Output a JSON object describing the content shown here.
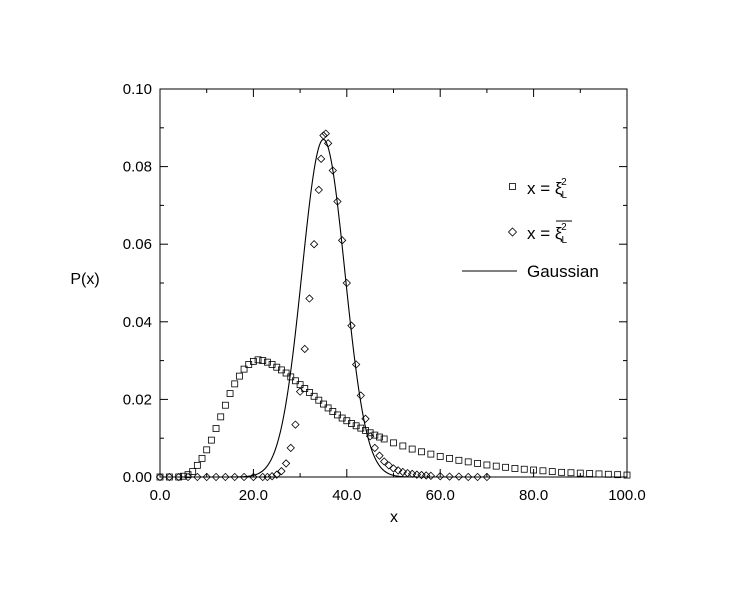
{
  "chart_data": {
    "type": "scatter",
    "title": "",
    "xlabel": "x",
    "ylabel": "P(x)",
    "xlim": [
      0,
      100
    ],
    "ylim": [
      0,
      0.1
    ],
    "x_ticks": [
      "0.0",
      "20.0",
      "40.0",
      "60.0",
      "80.0",
      "100.0"
    ],
    "y_ticks": [
      "0.00",
      "0.02",
      "0.04",
      "0.06",
      "0.08",
      "0.10"
    ],
    "grid": false,
    "legend_position": "top-right",
    "legend": {
      "square": {
        "prefix": "x = ",
        "symbol": "ξ",
        "sub": "L",
        "sup": "2"
      },
      "diamond": {
        "prefix": "x = ",
        "symbol": "ξ",
        "sub": "L",
        "sup": "2",
        "overline": true
      },
      "line": "Gaussian"
    },
    "series": [
      {
        "marker": "square",
        "x": [
          0,
          2,
          4,
          5,
          6,
          7,
          8,
          9,
          10,
          11,
          12,
          13,
          14,
          15,
          16,
          17,
          18,
          19,
          20,
          21,
          22,
          23,
          24,
          25,
          26,
          27,
          28,
          29,
          30,
          31,
          32,
          33,
          34,
          35,
          36,
          37,
          38,
          39,
          40,
          41,
          42,
          43,
          44,
          45,
          46,
          47,
          48,
          50,
          52,
          54,
          56,
          58,
          60,
          62,
          64,
          66,
          68,
          70,
          72,
          74,
          76,
          78,
          80,
          82,
          84,
          86,
          88,
          90,
          92,
          94,
          96,
          98,
          100
        ],
        "y": [
          0.0,
          0.0,
          0.0,
          0.0002,
          0.0006,
          0.0014,
          0.003,
          0.0048,
          0.007,
          0.0095,
          0.0125,
          0.0155,
          0.0185,
          0.0215,
          0.024,
          0.026,
          0.0278,
          0.029,
          0.0298,
          0.0302,
          0.03,
          0.0296,
          0.029,
          0.0283,
          0.0276,
          0.0268,
          0.0258,
          0.0248,
          0.0238,
          0.0228,
          0.0218,
          0.0208,
          0.0198,
          0.0188,
          0.0178,
          0.0169,
          0.016,
          0.0152,
          0.0145,
          0.0138,
          0.0132,
          0.0126,
          0.012,
          0.0114,
          0.0108,
          0.0103,
          0.0098,
          0.0088,
          0.008,
          0.0072,
          0.0065,
          0.0059,
          0.0053,
          0.0048,
          0.0043,
          0.0039,
          0.0035,
          0.0031,
          0.0028,
          0.0025,
          0.0022,
          0.002,
          0.0018,
          0.0016,
          0.0014,
          0.0012,
          0.0011,
          0.001,
          0.0009,
          0.0008,
          0.0007,
          0.0006,
          0.0005
        ]
      },
      {
        "marker": "diamond",
        "x": [
          0,
          2,
          4,
          6,
          8,
          10,
          12,
          14,
          16,
          18,
          20,
          22,
          23,
          24,
          25,
          26,
          27,
          28,
          29,
          30,
          31,
          32,
          33,
          34,
          34.5,
          35,
          35.5,
          36,
          37,
          38,
          39,
          40,
          41,
          42,
          43,
          44,
          45,
          46,
          47,
          48,
          49,
          50,
          51,
          52,
          53,
          54,
          55,
          56,
          57,
          58,
          60,
          62,
          64,
          66,
          68,
          70
        ],
        "y": [
          0.0,
          0.0,
          0.0,
          0.0,
          0.0,
          0.0,
          0.0,
          0.0,
          0.0,
          0.0,
          0.0,
          0.0,
          0.0,
          0.0002,
          0.0006,
          0.0015,
          0.0035,
          0.0075,
          0.0135,
          0.022,
          0.033,
          0.046,
          0.06,
          0.074,
          0.082,
          0.088,
          0.0885,
          0.086,
          0.079,
          0.071,
          0.061,
          0.05,
          0.039,
          0.029,
          0.021,
          0.015,
          0.0105,
          0.0075,
          0.0055,
          0.004,
          0.003,
          0.0022,
          0.0017,
          0.0013,
          0.001,
          0.0008,
          0.0006,
          0.0005,
          0.0004,
          0.0003,
          0.0002,
          0.0001,
          0.0001,
          0.0,
          0.0,
          0.0
        ]
      },
      {
        "marker": "line",
        "name": "Gaussian",
        "mu": 35,
        "sigma": 4.6,
        "peak": 0.087,
        "x_range": [
          15,
          55
        ]
      }
    ]
  }
}
